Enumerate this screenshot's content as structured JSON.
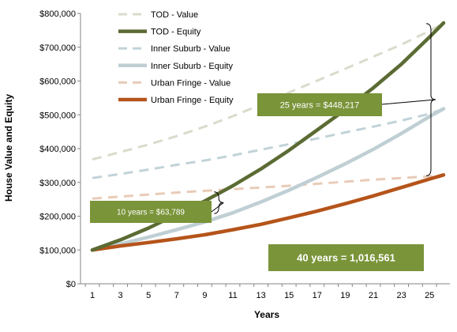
{
  "chart_data": {
    "type": "line",
    "xlabel": "Years",
    "ylabel": "House Value and Equity",
    "xlim": [
      1,
      26
    ],
    "ylim": [
      0,
      800000
    ],
    "x_ticks": [
      1,
      3,
      5,
      7,
      9,
      11,
      13,
      15,
      17,
      19,
      21,
      23,
      25
    ],
    "y_ticks": [
      "$0",
      "$100,000",
      "$200,000",
      "$300,000",
      "$400,000",
      "$500,000",
      "$600,000",
      "$700,000",
      "$800,000"
    ],
    "y_tick_values": [
      0,
      100000,
      200000,
      300000,
      400000,
      500000,
      600000,
      700000,
      800000
    ],
    "grid": false,
    "legend_position": "top-left inside",
    "series": [
      {
        "name": "TOD - Value",
        "color": "#d8dccb",
        "style": "dashed",
        "x": [
          1,
          3,
          5,
          7,
          9,
          11,
          13,
          15,
          17,
          19,
          21,
          23,
          25,
          26
        ],
        "values": [
          368000,
          390000,
          412000,
          437000,
          465000,
          496000,
          530000,
          566000,
          601000,
          636000,
          672000,
          708000,
          748000,
          772000
        ]
      },
      {
        "name": "TOD - Equity",
        "color": "#5b6b33",
        "style": "solid-thick",
        "x": [
          1,
          3,
          5,
          7,
          9,
          11,
          13,
          15,
          17,
          19,
          21,
          23,
          25,
          26
        ],
        "values": [
          100000,
          130000,
          165000,
          205000,
          245000,
          290000,
          340000,
          395000,
          455000,
          515000,
          580000,
          650000,
          730000,
          772000
        ]
      },
      {
        "name": "Inner Suburb - Value",
        "color": "#c1d3d8",
        "style": "dashed",
        "x": [
          1,
          3,
          5,
          7,
          9,
          11,
          13,
          15,
          17,
          19,
          21,
          23,
          25,
          26
        ],
        "values": [
          313000,
          325000,
          338000,
          352000,
          365000,
          380000,
          397000,
          413000,
          430000,
          448000,
          465000,
          483000,
          503000,
          518000
        ]
      },
      {
        "name": "Inner Suburb - Equity",
        "color": "#bfcfd3",
        "style": "solid-thick",
        "x": [
          1,
          3,
          5,
          7,
          9,
          11,
          13,
          15,
          17,
          19,
          21,
          23,
          25,
          26
        ],
        "values": [
          100000,
          118000,
          138000,
          160000,
          183000,
          210000,
          242000,
          277000,
          315000,
          355000,
          398000,
          445000,
          495000,
          518000
        ]
      },
      {
        "name": "Urban Fringe - Value",
        "color": "#e8cbb7",
        "style": "dashed",
        "x": [
          1,
          3,
          5,
          7,
          9,
          11,
          13,
          15,
          17,
          19,
          21,
          23,
          25,
          26
        ],
        "values": [
          252000,
          258000,
          264000,
          270000,
          275000,
          280000,
          285000,
          290000,
          296000,
          302000,
          308000,
          313000,
          318000,
          322000
        ]
      },
      {
        "name": "Urban Fringe - Equity",
        "color": "#b5541b",
        "style": "solid-thick",
        "x": [
          1,
          3,
          5,
          7,
          9,
          11,
          13,
          15,
          17,
          19,
          21,
          23,
          25,
          26
        ],
        "values": [
          100000,
          112000,
          122000,
          133000,
          145000,
          160000,
          176000,
          195000,
          215000,
          237000,
          260000,
          285000,
          310000,
          322000
        ]
      }
    ],
    "annotations": [
      {
        "text": "10 years = $63,789",
        "color": "#7a9439",
        "bracket_x": 10,
        "bracket_from": 208000,
        "bracket_to": 272000,
        "font_size": "small"
      },
      {
        "text": "25 years = $448,217",
        "color": "#7a9439",
        "bracket_x": 26,
        "bracket_from": 320000,
        "bracket_to": 770000,
        "font_size": "medium"
      },
      {
        "text": "40 years = 1,016,561",
        "color": "#7a9439",
        "font_size": "large"
      }
    ]
  }
}
